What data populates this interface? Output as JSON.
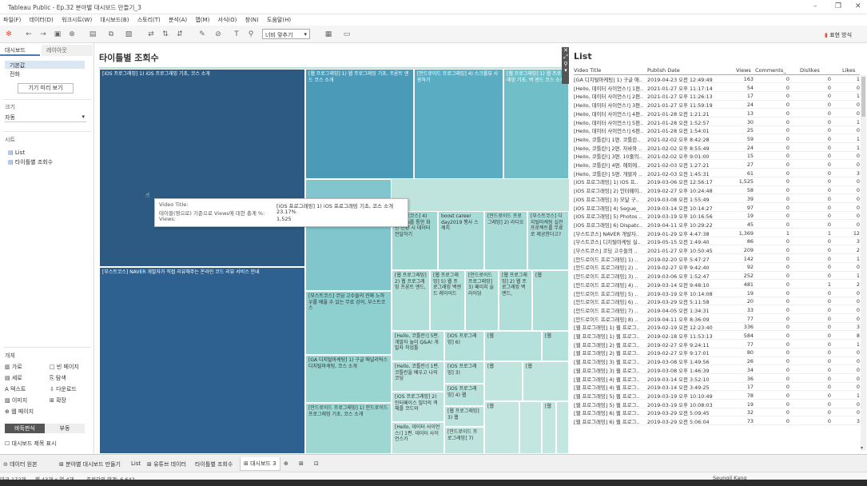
{
  "window": {
    "title": "Tableau Public - Ep.32 분야별 대시보드 만들기_3"
  },
  "menu": [
    "파일(F)",
    "데이터(D)",
    "워크시트(W)",
    "대시보드(B)",
    "스토리(T)",
    "분석(A)",
    "맵(M)",
    "서식(O)",
    "창(N)",
    "도움말(H)"
  ],
  "toolbar": {
    "fit": "너비 맞추기",
    "present": "표현 방식"
  },
  "left": {
    "tabs": [
      "대시보드",
      "레이아웃"
    ],
    "device": [
      "기본값",
      "전화"
    ],
    "preview_button": "기기 미리 보기",
    "size_title": "크기",
    "size_value": "자동",
    "sheets_title": "시트",
    "sheets": [
      "List",
      "타이틀별 조회수"
    ],
    "objects_title": "개체",
    "objects": [
      "가로",
      "빈 페이지",
      "세로",
      "탐색",
      "텍스트",
      "다운로드",
      "이미지",
      "확장",
      "웹 페이지"
    ],
    "layout_tabs": [
      "바둑판식",
      "부동"
    ],
    "show_title": "대시보드 제목 표시"
  },
  "treemap": {
    "title": "타이틀별 조회수",
    "cells": [
      "[iOS 프로그래밍] 1) iOS 프로그래밍 기초, 코스 소개",
      "[웹 프로그래밍] 1) 웹 프로그래밍 기초, 프론트 엔드 코스 소개",
      "[안드로이드 프로그래밍] 4) 스크롤뷰 사용하기",
      "[웹 프로그래밍] 1) 웹 프로그래밍 기초, 백 엔드 코스 소개",
      "[부스트코스] NAVER 개발자가 직접 리뷰해주는 온라인 코드 리뷰 서비스 안내",
      "[부스트코스] 코딩 고수들의 진짜 노하우를 배울 수 있는 무료 강의, 부스트코스",
      "[GA 디지털마케팅] 1) 구글 애널리틱스 디지털마케팅, 코스 소개",
      "[안드로이드 프로그래밍] 1) 안드로이드 프로그래밍 기초, 코스 소개",
      "[부스트코스] 4) Segue를 통한 화면 전환 시 데이터 전달하기",
      "boost career day2019 행사 스케치",
      "[안드로이드 프로그래밍] 2) 라디오",
      "[부스트코스] 디지털마케팅 실전 프로젝트를 무료로 제공한다고?",
      "[웹 프로그래밍] 2) 웹 프로그래밍 프론트 엔드,",
      "[웹 프로그래밍] 5) 웹 프로그래밍 백엔드 레이어드",
      "[안드로이드 프로그래밍] 3) 페이지 슬라이딩",
      "[웹 프로그래밍] 2) 웹 프로그래밍 백엔드,",
      "[Hello, 코틀린!] 5편. 개발자 놀이 Q&A! 개발자 허업틀",
      "[iOS 프로그래밍] 6)",
      "[Hello, 코틀린!] 1편. 코틀린을 배우고 나의 코딩",
      "[iOS 프로그래밍] 3)",
      "[iOS 프로그래밍] 4) 웹",
      "[iOS 프로그래밍] 2) 인터페이스 빌더의 객체를 코드와",
      "[웹 프로그래밍] 3) 웹",
      "[Hello, 데이터 사이언스!] 1편. 데이터 사이언스가",
      "[안드로이드 프로그래밍] 7)",
      "[웹",
      "[웹",
      "[웹",
      "[웹",
      "[웹",
      "[웹",
      "[웹"
    ],
    "tooltip": {
      "label1": "Video Title:",
      "value1": "[iOS 프로그래밍] 1) iOS 프로그래밍 기초, 코스 소개",
      "label2": "테이블(영으로) 기준으로 Views에 대한 총계 %:",
      "value2": "23.17%",
      "label3": "Views:",
      "value3": "1,525"
    }
  },
  "list": {
    "title": "List",
    "headers": [
      "Video Title",
      "Publish Date",
      "Views",
      "Comments_",
      "Dislikes",
      "Likes"
    ],
    "rows": [
      [
        "[GA 디지털마케팅] 1) 구글 애..",
        "2019-04-23 오전 12:49:49",
        "163",
        "0",
        "0",
        "1"
      ],
      [
        "[Hello, 데이터 사이언스!] 1편..",
        "2021-01-27 오후 11:17:14",
        "54",
        "0",
        "0",
        "0"
      ],
      [
        "[Hello, 데이터 사이언스!] 2편..",
        "2021-01-27 오후 11:26:13",
        "17",
        "0",
        "0",
        "1"
      ],
      [
        "[Hello, 데이터 사이언스!] 3편..",
        "2021-01-27 오후 11:59:19",
        "24",
        "0",
        "0",
        "0"
      ],
      [
        "[Hello, 데이터 사이언스!] 4편..",
        "2021-01-28 오전 1:21:21",
        "13",
        "0",
        "0",
        "0"
      ],
      [
        "[Hello, 데이터 사이언스!] 5편..",
        "2021-01-28 오전 1:52:57",
        "30",
        "0",
        "0",
        "1"
      ],
      [
        "[Hello, 데이터 사이언스!] 6편..",
        "2021-01-28 오전 1:54:01",
        "25",
        "0",
        "0",
        "0"
      ],
      [
        "[Hello, 코틀린!] 1편. 코틀린..",
        "2021-02-02 오후 8:42:28",
        "59",
        "0",
        "0",
        "1"
      ],
      [
        "[Hello, 코틀린!] 2편. 자바와 ..",
        "2021-02-02 오후 8:55:49",
        "24",
        "0",
        "0",
        "1"
      ],
      [
        "[Hello, 코틀린!] 3편. 10줄의..",
        "2021-02-02 오후 9:01:00",
        "15",
        "0",
        "0",
        "0"
      ],
      [
        "[Hello, 코틀린!] 4편. 헤외에..",
        "2021-02-03 오전 1:27:21",
        "27",
        "0",
        "0",
        "0"
      ],
      [
        "[Hello, 코틀린!] 5편. 개발자 ..",
        "2021-02-03 오전 1:45:31",
        "61",
        "0",
        "0",
        "3"
      ],
      [
        "[iOS 프로그래밍] 1) iOS 프..",
        "2019-03-06 오전 12:56:17",
        "1,525",
        "0",
        "0",
        "0"
      ],
      [
        "[iOS 프로그래밍] 2) 인터페이..",
        "2019-02-27 오후 10:24:48",
        "58",
        "0",
        "0",
        "0"
      ],
      [
        "[iOS 프로그래밍] 3) 모달 구..",
        "2019-03-08 오전 1:55:49",
        "39",
        "0",
        "0",
        "0"
      ],
      [
        "[iOS 프로그래밍] 4) Segue_",
        "2019-03-14 오전 10:14:27",
        "97",
        "0",
        "0",
        "0"
      ],
      [
        "[iOS 프로그래밍] 5) Photos ..",
        "2019-03-19 오후 10:16:56",
        "19",
        "0",
        "0",
        "0"
      ],
      [
        "[iOS 프로그래밍] 6) Dispatc..",
        "2019-04-11 오후 10:29:22",
        "45",
        "0",
        "0",
        "0"
      ],
      [
        "[부스트코스] NAVER 개발자..",
        "2019-01-29 오후 4:47:38",
        "1,369",
        "1",
        "1",
        "12"
      ],
      [
        "[부스트코스] 디지털마케팅 실..",
        "2019-05-15 오전 1:49:40",
        "86",
        "0",
        "0",
        "3"
      ],
      [
        "[부스트코스] 코딩 고수들의 ..",
        "2021-01-27 오후 10:50:45",
        "209",
        "0",
        "0",
        "2"
      ],
      [
        "[안드로이드 프로그래밍] 1) ..",
        "2019-02-20 오후 5:47:27",
        "142",
        "0",
        "0",
        "1"
      ],
      [
        "[안드로이드 프로그래밍] 2) ..",
        "2019-02-27 오후 9:42:40",
        "92",
        "0",
        "0",
        "0"
      ],
      [
        "[안드로이드 프로그래밍] 3) ..",
        "2019-03-06 오후 1:52:47",
        "252",
        "0",
        "0",
        "1"
      ],
      [
        "[안드로이드 프로그래밍] 4) ..",
        "2019-03-14 오전 9:48:10",
        "481",
        "0",
        "1",
        "2"
      ],
      [
        "[안드로이드 프로그래밍] 5) ..",
        "2019-03-19 오후 10:14:08",
        "19",
        "0",
        "0",
        "0"
      ],
      [
        "[안드로이드 프로그래밍] 6) ..",
        "2019-03-29 오전 5:11:58",
        "20",
        "0",
        "0",
        "0"
      ],
      [
        "[안드로이드 프로그래밍] 7) ..",
        "2019-04-05 오전 1:34:31",
        "33",
        "0",
        "0",
        "0"
      ],
      [
        "[안드로이드 프로그래밍] 8) ..",
        "2019-04-11 오후 8:36:09",
        "77",
        "0",
        "0",
        "0"
      ],
      [
        "[웹 프로그래밍] 1) 웹 프로그..",
        "2019-02-19 오전 12:23:40",
        "336",
        "0",
        "0",
        "3"
      ],
      [
        "[웹 프로그래밍] 1) 웹 프로그..",
        "2019-02-18 오후 11:53:13",
        "584",
        "0",
        "0",
        "8"
      ],
      [
        "[웹 프로그래밍] 2) 웹 프로그..",
        "2019-02-27 오후 9:24:11",
        "77",
        "0",
        "0",
        "1"
      ],
      [
        "[웹 프로그래밍] 2) 웹 프로그..",
        "2019-02-27 오후 9:17:01",
        "80",
        "0",
        "0",
        "0"
      ],
      [
        "[웹 프로그래밍] 3) 웹 프로그..",
        "2019-03-08 오후 1:49:56",
        "26",
        "0",
        "0",
        "0"
      ],
      [
        "[웹 프로그래밍] 3) 웹 프로그..",
        "2019-03-08 오후 1:46:39",
        "34",
        "0",
        "0",
        "0"
      ],
      [
        "[웹 프로그래밍] 4) 웹 프로그..",
        "2019-03-14 오전 3:52:10",
        "36",
        "0",
        "0",
        "0"
      ],
      [
        "[웹 프로그래밍] 4) 웹 프로그..",
        "2019-03-14 오전 3:49:25",
        "17",
        "0",
        "0",
        "0"
      ],
      [
        "[웹 프로그래밍] 5) 웹 프로그..",
        "2019-03-19 오후 10:10:49",
        "78",
        "0",
        "0",
        "1"
      ],
      [
        "[웹 프로그래밍] 5) 웹 프로그..",
        "2019-03-19 오후 10:08:03",
        "19",
        "0",
        "0",
        "0"
      ],
      [
        "[웹 프로그래밍] 6) 웹 프로그..",
        "2019-03-29 오전 5:09:45",
        "32",
        "0",
        "0",
        "0"
      ],
      [
        "[웹 프로그래밍] 6) 웹 프로그..",
        "2019-03-29 오전 5:06:04",
        "73",
        "0",
        "0",
        "3"
      ]
    ]
  },
  "bottom_tabs": [
    "데이터 원본",
    "분야별 대시보드 만들기",
    "List",
    "유튜브 데이터",
    "타이틀별 조회수",
    "대시보드 3"
  ],
  "status": {
    "marks": "마크 172개",
    "rows": "행 43개 x 열 4개",
    "sum": "조정값의 합계: 6,642",
    "user": "Seungil Kang"
  },
  "colors": {
    "tm_dark": "#2c5a82",
    "tm_mid": "#4a9ab8",
    "tm_light": "#a9dbd9",
    "tm_pale": "#bfe4de"
  }
}
